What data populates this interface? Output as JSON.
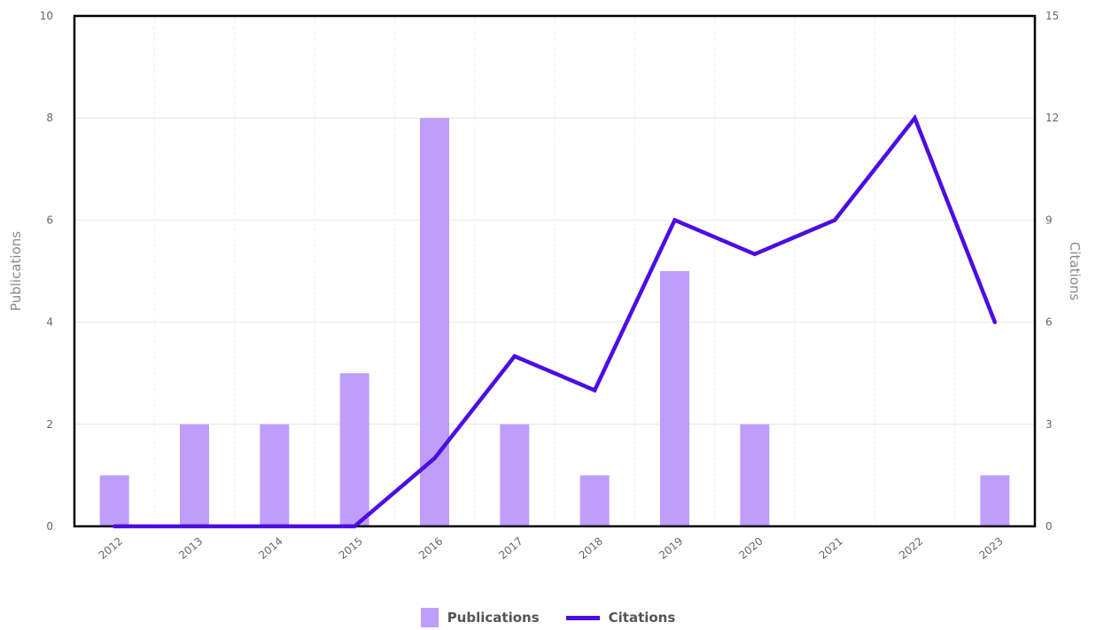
{
  "chart_data": {
    "type": "bar+line",
    "categories": [
      "2012",
      "2013",
      "2014",
      "2015",
      "2016",
      "2017",
      "2018",
      "2019",
      "2020",
      "2021",
      "2022",
      "2023"
    ],
    "series": [
      {
        "name": "Publications",
        "type": "bar",
        "axis": "left",
        "color": "#bf9dfb",
        "values": [
          1,
          2,
          2,
          3,
          8,
          2,
          1,
          5,
          2,
          0,
          0,
          1
        ]
      },
      {
        "name": "Citations",
        "type": "line",
        "axis": "right",
        "color": "#4b0de3",
        "values": [
          0,
          0,
          0,
          0,
          2,
          5,
          4,
          9,
          8,
          9,
          12,
          6
        ]
      }
    ],
    "ylabel": "Publications",
    "y2label": "Citations",
    "ylim": [
      0,
      10
    ],
    "y2lim": [
      0,
      15
    ],
    "yticks": [
      "0",
      "2",
      "4",
      "6",
      "8",
      "10"
    ],
    "y2ticks": [
      "0",
      "3",
      "6",
      "9",
      "12",
      "15"
    ],
    "grid": true,
    "legend_position": "bottom"
  },
  "legend": {
    "publications": "Publications",
    "citations": "Citations"
  }
}
